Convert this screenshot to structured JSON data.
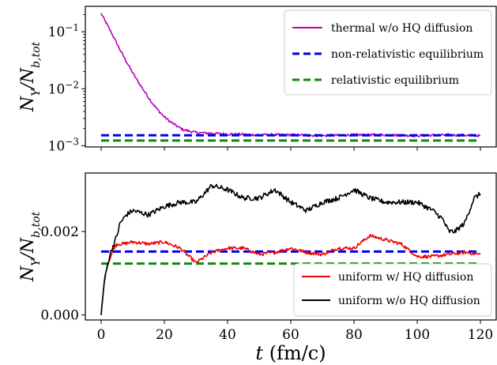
{
  "chart_data": [
    {
      "type": "line",
      "yscale": "log",
      "ylabel": "N_Υ / N_b,tot",
      "xlim": [
        -5,
        125
      ],
      "ylim": [
        0.00095,
        0.28
      ],
      "yticks": [
        {
          "value": 0.1,
          "base": "10",
          "exp": "−1"
        },
        {
          "value": 0.01,
          "base": "10",
          "exp": "−2"
        },
        {
          "value": 0.001,
          "base": "10",
          "exp": "−3"
        }
      ],
      "legend_position": "top-right",
      "series": [
        {
          "name": "thermal w/o HQ diffusion",
          "color": "#bf00bf",
          "style": "solid",
          "x": [
            0,
            2,
            4,
            6,
            8,
            10,
            12,
            14,
            16,
            18,
            20,
            22,
            24,
            26,
            28,
            30,
            35,
            40,
            50,
            60,
            70,
            80,
            90,
            100,
            110,
            120
          ],
          "y": [
            0.21,
            0.13,
            0.08,
            0.048,
            0.03,
            0.019,
            0.0125,
            0.0085,
            0.0058,
            0.0042,
            0.0032,
            0.0026,
            0.0022,
            0.0019,
            0.0018,
            0.0017,
            0.00165,
            0.0016,
            0.00155,
            0.00155,
            0.0015,
            0.00155,
            0.00155,
            0.0015,
            0.00155,
            0.0015
          ]
        },
        {
          "name": "non-relativistic equilibrium",
          "color": "#0000ee",
          "style": "dashed",
          "x": [
            0,
            120
          ],
          "y": [
            0.00152,
            0.00152
          ]
        },
        {
          "name": "relativistic equilibrium",
          "color": "#118811",
          "style": "dashed",
          "x": [
            0,
            120
          ],
          "y": [
            0.00123,
            0.00123
          ]
        }
      ]
    },
    {
      "type": "line",
      "yscale": "linear",
      "xlabel": "t (fm/c)",
      "ylabel": "N_Υ / N_b,tot",
      "xlim": [
        -5,
        125
      ],
      "ylim": [
        -0.00012,
        0.0034
      ],
      "xticks": [
        0,
        20,
        40,
        60,
        80,
        100,
        120
      ],
      "yticks": [
        {
          "value": 0,
          "label": "0.000"
        },
        {
          "value": 0.002,
          "label": "0.002"
        }
      ],
      "legend_position": "bottom-right",
      "series": [
        {
          "name": "non-relativistic equilibrium",
          "color": "#0000ee",
          "style": "dashed",
          "x": [
            0,
            120
          ],
          "y": [
            0.00152,
            0.00152
          ]
        },
        {
          "name": "relativistic equilibrium",
          "color": "#118811",
          "style": "dashed",
          "x": [
            0,
            120
          ],
          "y": [
            0.00123,
            0.00123
          ]
        },
        {
          "name": "uniform w/ HQ diffusion",
          "color": "#ee0000",
          "style": "solid",
          "x": [
            0,
            1,
            2,
            3,
            4,
            5,
            7,
            10,
            15,
            20,
            25,
            30,
            35,
            40,
            45,
            50,
            55,
            60,
            65,
            70,
            75,
            80,
            85,
            90,
            95,
            100,
            105,
            110,
            115,
            120
          ],
          "y": [
            0.0,
            0.0008,
            0.0012,
            0.0014,
            0.0016,
            0.0017,
            0.0017,
            0.00175,
            0.0017,
            0.00175,
            0.0016,
            0.00125,
            0.0015,
            0.0016,
            0.0016,
            0.00145,
            0.0015,
            0.0016,
            0.0015,
            0.00145,
            0.0016,
            0.0016,
            0.0019,
            0.0018,
            0.0017,
            0.0014,
            0.0014,
            0.00145,
            0.0015,
            0.00145
          ]
        },
        {
          "name": "uniform w/o HQ diffusion",
          "color": "#000000",
          "style": "solid",
          "x": [
            0,
            1,
            2,
            3,
            4,
            5,
            6,
            8,
            10,
            15,
            20,
            25,
            30,
            35,
            40,
            45,
            50,
            55,
            60,
            65,
            70,
            75,
            80,
            85,
            90,
            95,
            100,
            105,
            108,
            110,
            112,
            115,
            118,
            120
          ],
          "y": [
            0.0,
            0.0008,
            0.0012,
            0.0015,
            0.0017,
            0.0019,
            0.0022,
            0.0024,
            0.0025,
            0.0024,
            0.0026,
            0.0027,
            0.0027,
            0.0031,
            0.003,
            0.0028,
            0.0028,
            0.003,
            0.0027,
            0.0025,
            0.0027,
            0.0028,
            0.003,
            0.0028,
            0.0027,
            0.0027,
            0.0027,
            0.0025,
            0.0023,
            0.002,
            0.002,
            0.0022,
            0.0028,
            0.0029
          ]
        }
      ]
    }
  ]
}
